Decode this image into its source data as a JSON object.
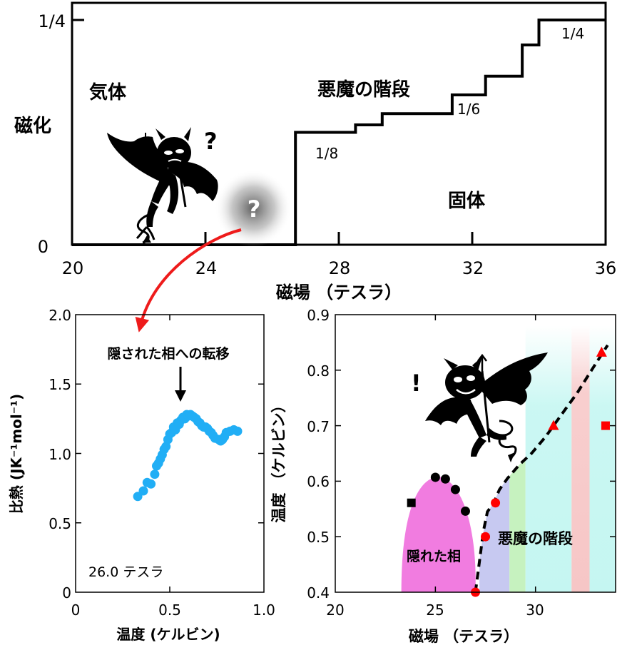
{
  "colors": {
    "hidden_phase": "#f17ce0",
    "step_1_8": "#c7c9f1",
    "step_green": "#c6f2bf",
    "step_cyan": "#c2f6f1",
    "step_red": "#f6c3c3",
    "dot_black": "#000000",
    "dot_red": "#ff0000",
    "dot_cyan": "#21aef5",
    "arrow_red": "#ee1b1b"
  },
  "icons": {
    "devil_question": "devil-puzzled-icon",
    "devil_exclaim": "devil-smiling-icon",
    "question_glow": "question-glow-icon"
  },
  "panel_top": {
    "title": "",
    "xlabel": "磁場 （テスラ）",
    "ylabel": "磁化",
    "xticks": [
      "20",
      "24",
      "28",
      "32",
      "36"
    ],
    "yticks": [
      "0",
      "1/4"
    ],
    "label_gas": "気体",
    "label_staircase": "悪魔の階段",
    "label_solid": "固体",
    "step_labels": [
      "1/8",
      "1/6",
      "1/4"
    ],
    "question_mark_devil": "?",
    "question_mark_glow": "?"
  },
  "panel_left": {
    "xlabel": "温度 (ケルビン)",
    "ylabel": "比熱 (JK⁻¹mol⁻¹)",
    "xticks": [
      "0",
      "0.5",
      "1.0"
    ],
    "yticks": [
      "0",
      "0.5",
      "1.0",
      "1.5",
      "2.0"
    ],
    "annotation": "隠された相への転移",
    "field_label": "26.0 テスラ"
  },
  "panel_right": {
    "xlabel": "磁場 （テスラ）",
    "ylabel": "温度 （ケルビン）",
    "xticks": [
      "20",
      "25",
      "30"
    ],
    "yticks": [
      "0.4",
      "0.5",
      "0.6",
      "0.7",
      "0.8",
      "0.9"
    ],
    "label_hidden": "隠れた相",
    "label_staircase": "悪魔の階段",
    "exclaim": "!"
  },
  "chart_data": [
    {
      "type": "line",
      "name": "magnetization",
      "xlim": [
        20,
        36
      ],
      "ylim": [
        0,
        0.25
      ],
      "x": [
        20,
        26.7,
        26.7,
        28.5,
        28.5,
        29.3,
        29.3,
        31.4,
        31.4,
        32.4,
        32.4,
        33.5,
        33.5,
        34.0,
        34.0,
        36.0
      ],
      "y": [
        0,
        0,
        0.125,
        0.125,
        0.1333,
        0.1333,
        0.1458,
        0.1458,
        0.1667,
        0.1667,
        0.1875,
        0.1875,
        0.2222,
        0.2222,
        0.25,
        0.25
      ]
    },
    {
      "type": "scatter",
      "name": "specific_heat",
      "xlim": [
        0,
        1.0
      ],
      "ylim": [
        0,
        2.0
      ],
      "x": [
        0.33,
        0.36,
        0.38,
        0.4,
        0.42,
        0.43,
        0.44,
        0.45,
        0.46,
        0.47,
        0.48,
        0.49,
        0.5,
        0.51,
        0.52,
        0.53,
        0.54,
        0.55,
        0.56,
        0.57,
        0.58,
        0.59,
        0.6,
        0.61,
        0.62,
        0.63,
        0.64,
        0.65,
        0.66,
        0.67,
        0.68,
        0.69,
        0.7,
        0.71,
        0.72,
        0.73,
        0.74,
        0.76,
        0.77,
        0.78,
        0.79,
        0.8,
        0.82,
        0.84,
        0.86
      ],
      "y": [
        0.69,
        0.73,
        0.79,
        0.78,
        0.85,
        0.91,
        0.93,
        0.96,
        0.99,
        1.03,
        1.05,
        1.1,
        1.14,
        1.15,
        1.19,
        1.17,
        1.22,
        1.21,
        1.24,
        1.26,
        1.25,
        1.28,
        1.27,
        1.28,
        1.27,
        1.26,
        1.25,
        1.23,
        1.22,
        1.2,
        1.19,
        1.19,
        1.18,
        1.16,
        1.15,
        1.13,
        1.11,
        1.1,
        1.09,
        1.1,
        1.12,
        1.15,
        1.16,
        1.17,
        1.16
      ]
    },
    {
      "type": "scatter",
      "name": "phase_diagram",
      "xlim": [
        20,
        34
      ],
      "ylim": [
        0.4,
        0.9
      ],
      "black_circles": {
        "x": [
          25.0,
          25.5,
          26.0,
          26.5
        ],
        "y": [
          0.607,
          0.604,
          0.585,
          0.546
        ]
      },
      "black_squares": {
        "x": [
          23.8
        ],
        "y": [
          0.561
        ]
      },
      "red_circles": {
        "x": [
          27.0,
          27.5,
          28.0
        ],
        "y": [
          0.4,
          0.5,
          0.561
        ]
      },
      "red_triangles": {
        "x": [
          30.9,
          33.3
        ],
        "y": [
          0.7,
          0.832
        ]
      },
      "red_squares": {
        "x": [
          33.5
        ],
        "y": [
          0.7
        ]
      },
      "boundary_dashed": {
        "x": [
          27.0,
          27.2,
          27.4,
          27.6,
          27.9,
          28.2,
          28.6,
          29.2,
          29.8,
          30.5,
          31.3,
          32.1,
          32.8,
          33.6
        ],
        "y": [
          0.4,
          0.455,
          0.51,
          0.545,
          0.56,
          0.585,
          0.605,
          0.63,
          0.65,
          0.68,
          0.72,
          0.76,
          0.8,
          0.845
        ]
      },
      "region_bands": [
        {
          "label": "1/8",
          "x0": 27.2,
          "x1": 28.7
        },
        {
          "label": "green",
          "x0": 28.7,
          "x1": 29.5
        },
        {
          "label": "cyan1",
          "x0": 29.5,
          "x1": 31.8
        },
        {
          "label": "red",
          "x0": 31.8,
          "x1": 32.7
        },
        {
          "label": "cyan2",
          "x0": 32.7,
          "x1": 34.0
        }
      ]
    }
  ]
}
